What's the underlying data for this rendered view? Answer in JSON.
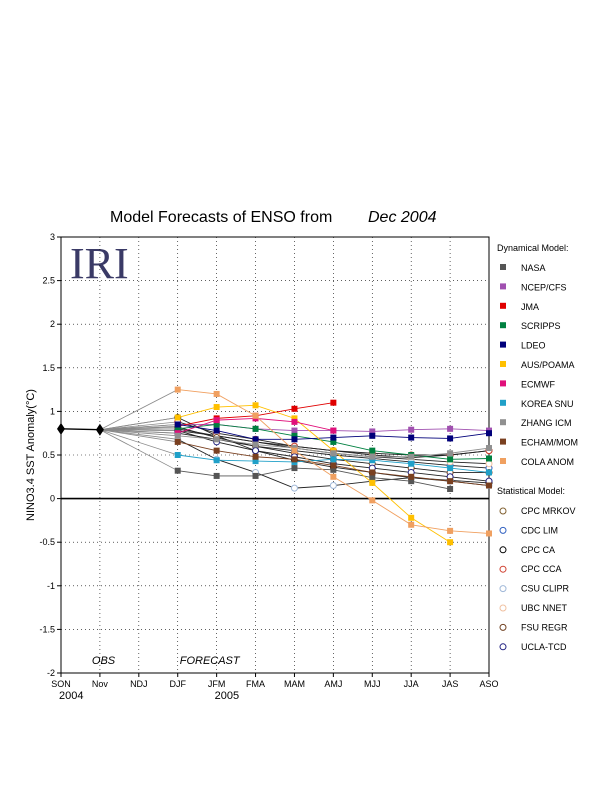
{
  "chart_data": {
    "type": "line",
    "title": "Model Forecasts of ENSO from",
    "title_date": "Dec 2004",
    "logo": "IRI",
    "ylabel": "NINO3.4 SST Anomaly(°C)",
    "ylim": [
      -2,
      3
    ],
    "yticks": [
      -2,
      -1.5,
      -1,
      -0.5,
      0,
      0.5,
      1,
      1.5,
      2,
      2.5,
      3
    ],
    "ytick_labels": [
      "-2",
      "-1.5",
      "-1",
      "-0.5",
      "0",
      "0.5",
      "1",
      "1.5",
      "2",
      "2.5",
      "3"
    ],
    "categories": [
      "SON",
      "Nov",
      "NDJ",
      "DJF",
      "JFM",
      "FMA",
      "MAM",
      "AMJ",
      "MJJ",
      "JJA",
      "JAS",
      "ASO"
    ],
    "year_labels": [
      {
        "label": "2004",
        "at": "SON"
      },
      {
        "label": "2005",
        "at": "JFM"
      }
    ],
    "annotations": [
      {
        "text": "OBS",
        "at": "Nov"
      },
      {
        "text": "FORECAST",
        "at": "DJF"
      }
    ],
    "zero_line": true,
    "grid": "dotted",
    "observed": {
      "x": [
        "SON",
        "Nov"
      ],
      "values": [
        0.8,
        0.79
      ],
      "color": "#000000"
    },
    "legend_headers": {
      "dynamical": "Dynamical Model:",
      "statistical": "Statistical Model:"
    },
    "dynamical_models": [
      {
        "name": "NASA",
        "color": "#555555",
        "values": [
          0.32,
          0.26,
          0.26,
          0.35,
          0.33,
          0.24,
          0.2,
          0.11
        ]
      },
      {
        "name": "NCEP/CFS",
        "color": "#a050b0",
        "values": [
          0.85,
          0.85,
          0.8,
          0.78,
          0.78,
          0.77,
          0.79,
          0.8,
          0.78
        ]
      },
      {
        "name": "JMA",
        "color": "#e00000",
        "values": [
          0.83,
          0.92,
          0.95,
          1.03,
          1.1
        ]
      },
      {
        "name": "SCRIPPS",
        "color": "#008040",
        "values": [
          0.8,
          0.85,
          0.8,
          0.72,
          0.65,
          0.55,
          0.5,
          0.45,
          0.46
        ]
      },
      {
        "name": "LDEO",
        "color": "#00007a",
        "values": [
          0.85,
          0.78,
          0.68,
          0.68,
          0.7,
          0.72,
          0.7,
          0.69,
          0.75
        ]
      },
      {
        "name": "AUS/POAMA",
        "color": "#ffc000",
        "values": [
          0.93,
          1.05,
          1.07,
          0.92,
          0.55,
          0.18,
          -0.22,
          -0.5
        ]
      },
      {
        "name": "ECMWF",
        "color": "#e0107a",
        "values": [
          0.75,
          0.9,
          0.92,
          0.88,
          0.78
        ]
      },
      {
        "name": "KOREA SNU",
        "color": "#20a0c8",
        "values": [
          0.5,
          0.44,
          0.43,
          0.42,
          0.45,
          0.44,
          0.4,
          0.35,
          0.3
        ]
      },
      {
        "name": "ZHANG ICM",
        "color": "#909090",
        "values": [
          0.72,
          0.68,
          0.62,
          0.58,
          0.52,
          0.48,
          0.48,
          0.52,
          0.58
        ]
      },
      {
        "name": "ECHAM/MOM",
        "color": "#7a4020",
        "values": [
          0.65,
          0.55,
          0.48,
          0.45,
          0.38,
          0.3,
          0.25,
          0.2,
          0.15
        ]
      },
      {
        "name": "COLA ANOM",
        "color": "#f0a060",
        "values": [
          1.25,
          1.2,
          0.95,
          0.55,
          0.25,
          -0.02,
          -0.3,
          -0.37,
          -0.4
        ]
      }
    ],
    "statistical_models": [
      {
        "name": "CPC MRKOV",
        "color": "#806030",
        "values": [
          0.78,
          0.72,
          0.65,
          0.6,
          0.55,
          0.5,
          0.47,
          0.5,
          0.55
        ]
      },
      {
        "name": "CDC LIM",
        "color": "#3060c0",
        "values": [
          0.75,
          0.68,
          0.6,
          0.55,
          0.5,
          0.46,
          0.42,
          0.38,
          0.35
        ]
      },
      {
        "name": "CPC CA",
        "color": "#000000",
        "values": [
          0.93,
          0.72,
          0.55,
          0.44,
          0.36,
          0.3,
          0.24,
          0.21,
          0.18
        ]
      },
      {
        "name": "CPC CCA",
        "color": "#d04030",
        "values": [
          0.88,
          0.75,
          0.68,
          0.6,
          0.55,
          0.52,
          0.5,
          0.5,
          0.55
        ]
      },
      {
        "name": "CSU CLIPR",
        "color": "#a0b8d8",
        "values": [
          0.68,
          0.45,
          0.3,
          0.12,
          0.15,
          0.2,
          0.24,
          0.2,
          0.15
        ]
      },
      {
        "name": "UBC NNET",
        "color": "#f0c0a0",
        "values": [
          0.8,
          0.72,
          0.65,
          0.58,
          0.52,
          0.48,
          0.45,
          0.42,
          0.4
        ]
      },
      {
        "name": "FSU REGR",
        "color": "#704020",
        "values": [
          0.82,
          0.7,
          0.6,
          0.52,
          0.45,
          0.4,
          0.35,
          0.3,
          0.3
        ]
      },
      {
        "name": "UCLA-TCD",
        "color": "#202080",
        "values": [
          0.78,
          0.65,
          0.55,
          0.48,
          0.4,
          0.35,
          0.3,
          0.25,
          0.2
        ]
      }
    ]
  }
}
